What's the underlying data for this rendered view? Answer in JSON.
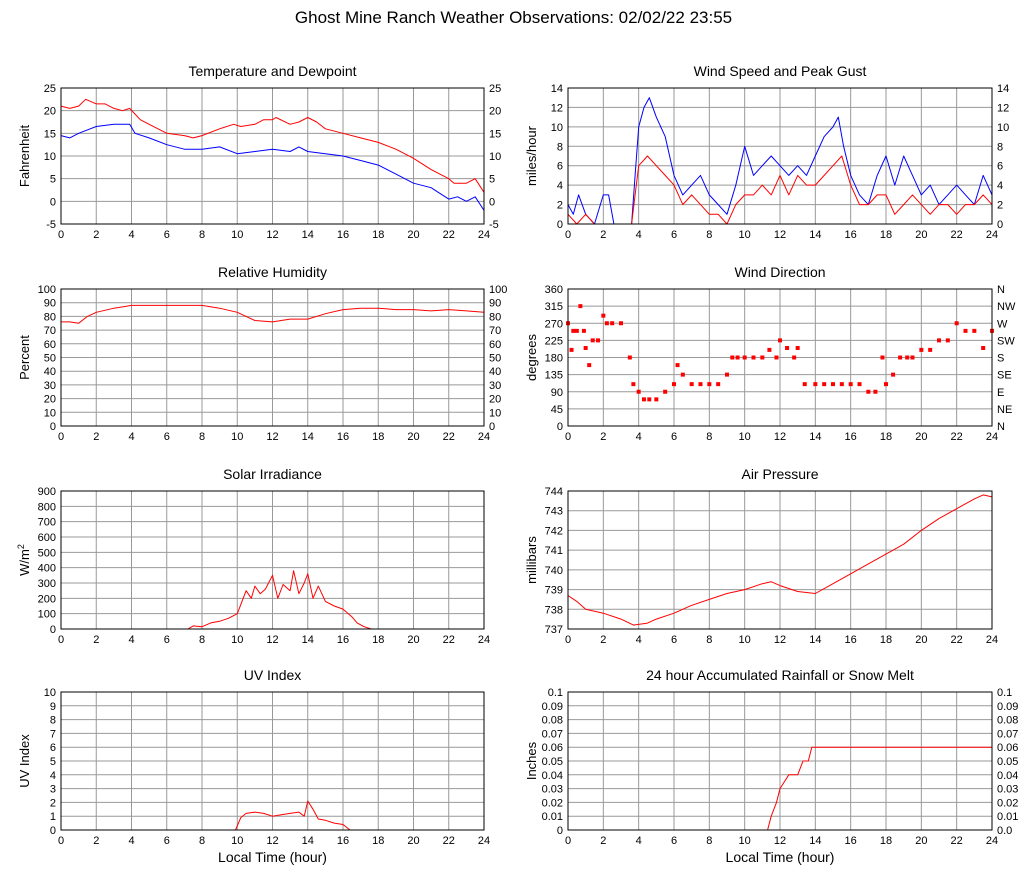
{
  "page_title": "Ghost Mine Ranch Weather Observations: 02/02/22 23:55",
  "colors": {
    "red": "#ff0000",
    "blue": "#0000ff",
    "grid": "#999999",
    "axis": "#000000"
  },
  "chart_data": [
    {
      "id": "temp",
      "type": "line",
      "title": "Temperature and Dewpoint",
      "ylabel": "Fahrenheit",
      "xlabel": "",
      "xlim": [
        0,
        24
      ],
      "ylim": [
        -5,
        25
      ],
      "xticks": [
        0,
        2,
        4,
        6,
        8,
        10,
        12,
        14,
        16,
        18,
        20,
        22,
        24
      ],
      "yticks": [
        -5,
        0,
        5,
        10,
        15,
        20,
        25
      ],
      "right_ticks": [
        "-5",
        "0",
        "5",
        "10",
        "15",
        "20",
        "25"
      ],
      "grid": true,
      "series": [
        {
          "name": "Temperature",
          "color": "#ff0000",
          "x": [
            0,
            0.5,
            1,
            1.4,
            2,
            2.5,
            3,
            3.5,
            3.9,
            4.5,
            5,
            6,
            7,
            7.5,
            8,
            9,
            9.8,
            10.2,
            11,
            11.5,
            12,
            12.2,
            13,
            13.5,
            14,
            14.5,
            15,
            16,
            17,
            18,
            19,
            20,
            21,
            22,
            22.3,
            23,
            23.5,
            24
          ],
          "y": [
            21,
            20.5,
            21,
            22.5,
            21.5,
            21.5,
            20.5,
            20,
            20.5,
            18,
            17,
            15,
            14.5,
            14,
            14.5,
            16,
            17,
            16.5,
            17,
            18,
            18,
            18.5,
            17,
            17.5,
            18.5,
            17.5,
            16,
            15,
            14,
            13,
            11.5,
            9.5,
            7,
            5,
            4,
            4,
            5,
            2
          ]
        },
        {
          "name": "Dewpoint",
          "color": "#0000ff",
          "x": [
            0,
            0.5,
            1,
            2,
            3,
            3.9,
            4.2,
            5,
            6,
            7,
            8,
            9,
            10,
            11,
            12,
            13,
            13.5,
            14,
            15,
            16,
            17,
            18,
            19,
            20,
            21,
            21.8,
            22,
            22.5,
            23,
            23.5,
            24
          ],
          "y": [
            14.5,
            14,
            15,
            16.5,
            17,
            17,
            15,
            14,
            12.5,
            11.5,
            11.5,
            12,
            10.5,
            11,
            11.5,
            11,
            12,
            11,
            10.5,
            10,
            9,
            8,
            6,
            4,
            3,
            1,
            0.5,
            1,
            0,
            1,
            -2
          ]
        }
      ]
    },
    {
      "id": "wind",
      "type": "line",
      "title": "Wind Speed and Peak Gust",
      "ylabel": "miles/hour",
      "xlabel": "",
      "xlim": [
        0,
        24
      ],
      "ylim": [
        0,
        14
      ],
      "xticks": [
        0,
        2,
        4,
        6,
        8,
        10,
        12,
        14,
        16,
        18,
        20,
        22,
        24
      ],
      "yticks": [
        0,
        2,
        4,
        6,
        8,
        10,
        12,
        14
      ],
      "right_ticks": [
        "0",
        "2",
        "4",
        "6",
        "8",
        "10",
        "12",
        "14"
      ],
      "grid": true,
      "series": [
        {
          "name": "Peak Gust",
          "color": "#0000ff",
          "x": [
            0,
            0.3,
            0.6,
            1,
            1.5,
            2,
            2.3,
            2.6,
            3.6,
            3.8,
            4,
            4.3,
            4.6,
            5,
            5.5,
            6,
            6.5,
            7,
            7.5,
            8,
            8.5,
            9,
            9.5,
            10,
            10.5,
            11,
            11.5,
            12,
            12.5,
            13,
            13.5,
            14,
            14.5,
            15,
            15.3,
            15.6,
            16,
            16.5,
            17,
            17.5,
            18,
            18.5,
            19,
            19.5,
            20,
            20.5,
            21,
            21.5,
            22,
            22.5,
            23,
            23.5,
            24
          ],
          "y": [
            2,
            1,
            3,
            1,
            0,
            3,
            3,
            0,
            0,
            5,
            10,
            12,
            13,
            11,
            9,
            5,
            3,
            4,
            5,
            3,
            2,
            1,
            4,
            8,
            5,
            6,
            7,
            6,
            5,
            6,
            5,
            7,
            9,
            10,
            11,
            8,
            5,
            3,
            2,
            5,
            7,
            4,
            7,
            5,
            3,
            4,
            2,
            3,
            4,
            3,
            2,
            5,
            3
          ]
        },
        {
          "name": "Wind Speed",
          "color": "#ff0000",
          "x": [
            0,
            0.5,
            1,
            1.5,
            2,
            2.5,
            3,
            3.6,
            3.8,
            4,
            4.5,
            5,
            5.5,
            6,
            6.5,
            7,
            7.5,
            8,
            8.5,
            9,
            9.5,
            10,
            10.5,
            11,
            11.5,
            12,
            12.5,
            13,
            13.5,
            14,
            14.5,
            15,
            15.5,
            16,
            16.5,
            17,
            17.5,
            18,
            18.5,
            19,
            19.5,
            20,
            20.5,
            21,
            21.5,
            22,
            22.5,
            23,
            23.5,
            24
          ],
          "y": [
            1,
            0,
            1,
            0,
            0,
            0,
            0,
            0,
            3,
            6,
            7,
            6,
            5,
            4,
            2,
            3,
            2,
            1,
            1,
            0,
            2,
            3,
            3,
            4,
            3,
            5,
            3,
            5,
            4,
            4,
            5,
            6,
            7,
            4,
            2,
            2,
            3,
            3,
            1,
            2,
            3,
            2,
            1,
            2,
            2,
            1,
            2,
            2,
            3,
            2
          ]
        }
      ]
    },
    {
      "id": "rh",
      "type": "line",
      "title": "Relative Humidity",
      "ylabel": "Percent",
      "xlabel": "",
      "xlim": [
        0,
        24
      ],
      "ylim": [
        0,
        100
      ],
      "xticks": [
        0,
        2,
        4,
        6,
        8,
        10,
        12,
        14,
        16,
        18,
        20,
        22,
        24
      ],
      "yticks": [
        0,
        10,
        20,
        30,
        40,
        50,
        60,
        70,
        80,
        90,
        100
      ],
      "right_ticks": [
        "0",
        "10",
        "20",
        "30",
        "40",
        "50",
        "60",
        "70",
        "80",
        "90",
        "100"
      ],
      "grid": true,
      "series": [
        {
          "name": "Relative Humidity",
          "color": "#ff0000",
          "x": [
            0,
            0.5,
            1,
            1.5,
            2,
            3,
            4,
            5,
            6,
            7,
            8,
            9,
            10,
            10.5,
            11,
            12,
            13,
            14,
            15,
            16,
            17,
            18,
            19,
            20,
            21,
            22,
            23,
            24
          ],
          "y": [
            76,
            76,
            75,
            80,
            83,
            86,
            88,
            88,
            88,
            88,
            88,
            86,
            83,
            80,
            77,
            76,
            78,
            78,
            82,
            85,
            86,
            86,
            85,
            85,
            84,
            85,
            84,
            83
          ]
        }
      ]
    },
    {
      "id": "winddir",
      "type": "scatter",
      "title": "Wind Direction",
      "ylabel": "degrees",
      "xlabel": "",
      "xlim": [
        0,
        24
      ],
      "ylim": [
        0,
        360
      ],
      "xticks": [
        0,
        2,
        4,
        6,
        8,
        10,
        12,
        14,
        16,
        18,
        20,
        22,
        24
      ],
      "yticks": [
        0,
        45,
        90,
        135,
        180,
        225,
        270,
        315,
        360
      ],
      "right_ticks": [
        "N",
        "NE",
        "E",
        "SE",
        "S",
        "SW",
        "W",
        "NW",
        "N"
      ],
      "grid": true,
      "series": [
        {
          "name": "Wind Direction",
          "color": "#ff0000",
          "x": [
            0,
            0.2,
            0.3,
            0.5,
            0.7,
            0.9,
            1,
            1.2,
            1.4,
            1.7,
            2,
            2.2,
            2.5,
            3,
            3.5,
            3.7,
            4,
            4.3,
            4.6,
            5,
            5.5,
            6,
            6.2,
            6.5,
            7,
            7.5,
            8,
            8.5,
            9,
            9.3,
            9.6,
            10,
            10.5,
            11,
            11.4,
            11.8,
            12,
            12.4,
            12.8,
            13,
            13.4,
            14,
            14.5,
            15,
            15.5,
            16,
            16.5,
            17,
            17.4,
            17.8,
            18,
            18.4,
            18.8,
            19.2,
            19.5,
            20,
            20.5,
            21,
            21.5,
            22,
            22.5,
            23,
            23.5,
            24
          ],
          "y": [
            270,
            200,
            250,
            250,
            315,
            250,
            205,
            160,
            225,
            225,
            290,
            270,
            270,
            270,
            180,
            110,
            90,
            70,
            70,
            70,
            90,
            110,
            160,
            135,
            110,
            110,
            110,
            110,
            135,
            180,
            180,
            180,
            180,
            180,
            200,
            180,
            225,
            205,
            180,
            205,
            110,
            110,
            110,
            110,
            110,
            110,
            110,
            90,
            90,
            180,
            110,
            135,
            180,
            180,
            180,
            200,
            200,
            225,
            225,
            270,
            250,
            250,
            205,
            250
          ]
        }
      ]
    },
    {
      "id": "solar",
      "type": "line",
      "title": "Solar Irradiance",
      "ylabel": "W/m2",
      "xlabel": "",
      "xlim": [
        0,
        24
      ],
      "ylim": [
        0,
        900
      ],
      "xticks": [
        0,
        2,
        4,
        6,
        8,
        10,
        12,
        14,
        16,
        18,
        20,
        22,
        24
      ],
      "yticks": [
        0,
        100,
        200,
        300,
        400,
        500,
        600,
        700,
        800,
        900
      ],
      "right_ticks": [],
      "grid": true,
      "series": [
        {
          "name": "Solar Irradiance",
          "color": "#ff0000",
          "x": [
            0,
            7.2,
            7.5,
            8,
            8.5,
            9,
            9.5,
            10,
            10.5,
            10.8,
            11,
            11.3,
            11.6,
            12,
            12.3,
            12.6,
            13,
            13.2,
            13.5,
            13.8,
            14,
            14.3,
            14.6,
            15,
            15.5,
            16,
            16.5,
            16.8,
            17.2,
            17.6,
            24
          ],
          "y": [
            0,
            0,
            20,
            15,
            40,
            50,
            70,
            100,
            250,
            200,
            280,
            230,
            260,
            350,
            200,
            290,
            250,
            380,
            230,
            300,
            360,
            200,
            280,
            180,
            150,
            130,
            80,
            40,
            15,
            0,
            0
          ]
        }
      ]
    },
    {
      "id": "pressure",
      "type": "line",
      "title": "Air Pressure",
      "ylabel": "millibars",
      "xlabel": "",
      "xlim": [
        0,
        24
      ],
      "ylim": [
        737,
        744
      ],
      "xticks": [
        0,
        2,
        4,
        6,
        8,
        10,
        12,
        14,
        16,
        18,
        20,
        22,
        24
      ],
      "yticks": [
        737,
        738,
        739,
        740,
        741,
        742,
        743,
        744
      ],
      "right_ticks": [],
      "grid": true,
      "series": [
        {
          "name": "Air Pressure",
          "color": "#ff0000",
          "x": [
            0,
            0.5,
            1,
            2,
            3,
            3.7,
            4.5,
            5,
            6,
            7,
            8,
            9,
            10,
            11,
            11.5,
            12,
            13,
            14,
            15,
            16,
            17,
            18,
            19,
            20,
            21,
            22,
            23,
            23.5,
            24
          ],
          "y": [
            738.7,
            738.4,
            738.0,
            737.8,
            737.5,
            737.2,
            737.3,
            737.5,
            737.8,
            738.2,
            738.5,
            738.8,
            739.0,
            739.3,
            739.4,
            739.2,
            738.9,
            738.8,
            739.3,
            739.8,
            740.3,
            740.8,
            741.3,
            742.0,
            742.6,
            743.1,
            743.6,
            743.8,
            743.7
          ]
        }
      ]
    },
    {
      "id": "uv",
      "type": "line",
      "title": "UV Index",
      "ylabel": "UV Index",
      "xlabel": "Local Time (hour)",
      "xlim": [
        0,
        24
      ],
      "ylim": [
        0,
        10
      ],
      "xticks": [
        0,
        2,
        4,
        6,
        8,
        10,
        12,
        14,
        16,
        18,
        20,
        22,
        24
      ],
      "yticks": [
        0,
        1,
        2,
        3,
        4,
        5,
        6,
        7,
        8,
        9,
        10
      ],
      "right_ticks": [],
      "grid": true,
      "series": [
        {
          "name": "UV Index",
          "color": "#ff0000",
          "x": [
            0,
            9.9,
            10.2,
            10.5,
            11,
            11.5,
            12,
            12.5,
            13,
            13.5,
            13.8,
            14,
            14.3,
            14.6,
            15,
            15.5,
            16,
            16.4,
            24
          ],
          "y": [
            0,
            0,
            0.9,
            1.2,
            1.3,
            1.2,
            1.0,
            1.1,
            1.2,
            1.3,
            1.0,
            2.1,
            1.5,
            0.8,
            0.7,
            0.5,
            0.4,
            0,
            0
          ]
        }
      ]
    },
    {
      "id": "rain",
      "type": "line",
      "title": "24 hour Accumulated Rainfall or Snow Melt",
      "ylabel": "Inches",
      "xlabel": "Local Time (hour)",
      "xlim": [
        0,
        24
      ],
      "ylim": [
        0,
        0.1
      ],
      "xticks": [
        0,
        2,
        4,
        6,
        8,
        10,
        12,
        14,
        16,
        18,
        20,
        22,
        24
      ],
      "yticks": [
        0,
        0.01,
        0.02,
        0.03,
        0.04,
        0.05,
        0.06,
        0.07,
        0.08,
        0.09,
        0.1
      ],
      "right_ticks": [
        "0.0",
        "0.01",
        "0.02",
        "0.03",
        "0.04",
        "0.05",
        "0.06",
        "0.07",
        "0.08",
        "0.09",
        "0.1"
      ],
      "grid": true,
      "series": [
        {
          "name": "Rainfall",
          "color": "#ff0000",
          "x": [
            0,
            11.3,
            11.5,
            11.8,
            12.0,
            12.5,
            13.0,
            13.3,
            13.6,
            13.8,
            24
          ],
          "y": [
            0,
            0,
            0.01,
            0.02,
            0.03,
            0.04,
            0.04,
            0.05,
            0.05,
            0.06,
            0.06
          ]
        }
      ]
    }
  ]
}
